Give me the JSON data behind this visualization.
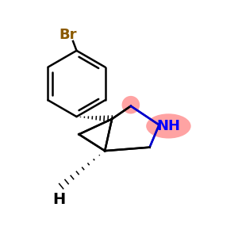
{
  "bg_color": "#ffffff",
  "br_color": "#8B5A00",
  "bond_color": "#000000",
  "nh_bond_color": "#0000CC",
  "nh_color": "#0000FF",
  "nh_highlight": "#FF9999",
  "ch2_highlight": "#FF9999",
  "figsize": [
    3.0,
    3.0
  ],
  "dpi": 100,
  "br_text": "Br",
  "nh_text": "NH",
  "h_text": "H"
}
